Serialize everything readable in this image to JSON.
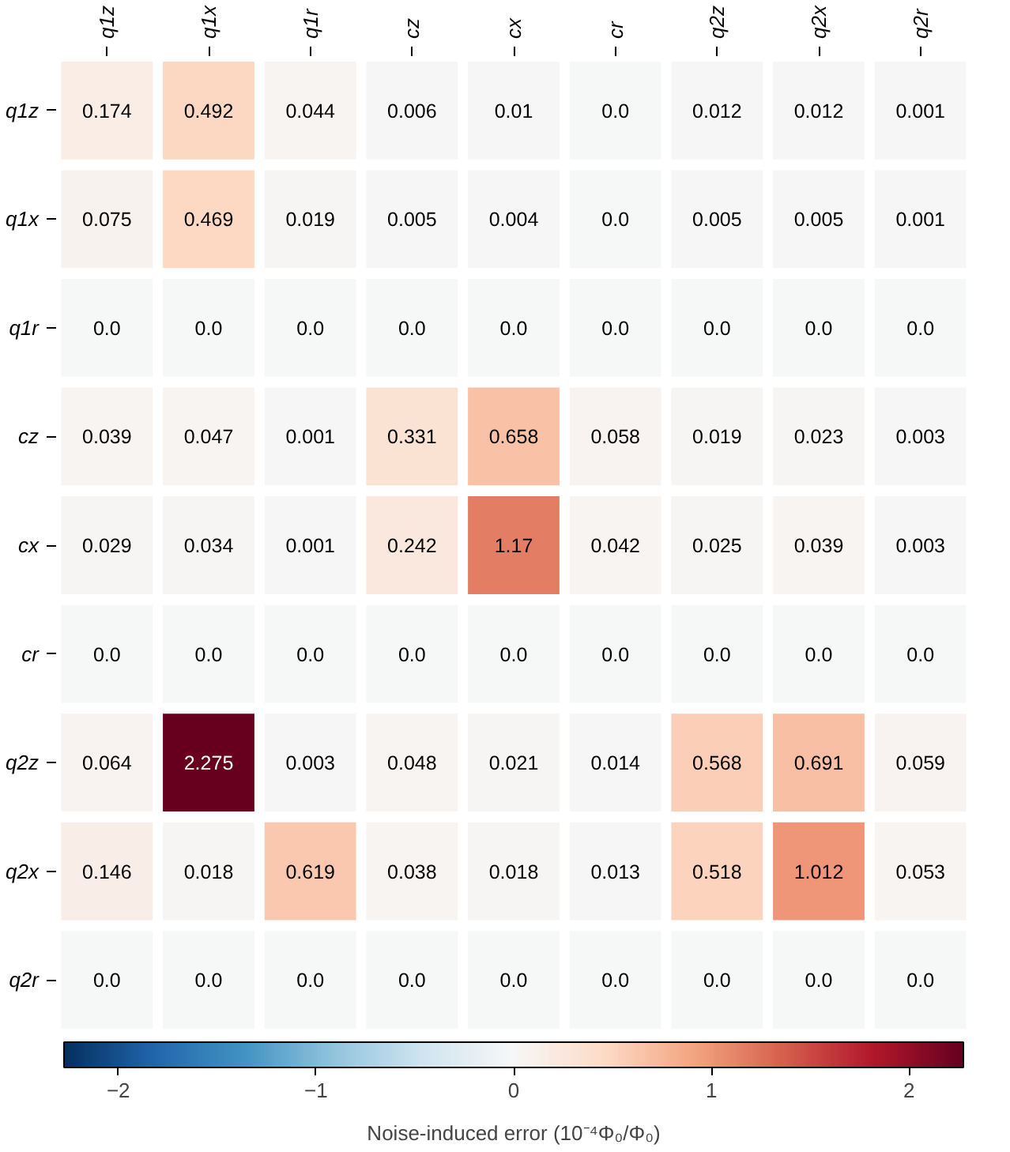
{
  "chart_data": {
    "type": "heatmap",
    "categories": [
      "q1z",
      "q1x",
      "q1r",
      "cz",
      "cx",
      "cr",
      "q2z",
      "q2x",
      "q2r"
    ],
    "y_categories": [
      "q1z",
      "q1x",
      "q1r",
      "cz",
      "cx",
      "cr",
      "q2z",
      "q2x",
      "q2r"
    ],
    "cells": [
      [
        0.174,
        0.492,
        0.044,
        0.006,
        0.01,
        0.0,
        0.012,
        0.012,
        0.001
      ],
      [
        0.075,
        0.469,
        0.019,
        0.005,
        0.004,
        0.0,
        0.005,
        0.005,
        0.001
      ],
      [
        0.0,
        0.0,
        0.0,
        0.0,
        0.0,
        0.0,
        0.0,
        0.0,
        0.0
      ],
      [
        0.039,
        0.047,
        0.001,
        0.331,
        0.658,
        0.058,
        0.019,
        0.023,
        0.003
      ],
      [
        0.029,
        0.034,
        0.001,
        0.242,
        1.17,
        0.042,
        0.025,
        0.039,
        0.003
      ],
      [
        0.0,
        0.0,
        0.0,
        0.0,
        0.0,
        0.0,
        0.0,
        0.0,
        0.0
      ],
      [
        0.064,
        2.275,
        0.003,
        0.048,
        0.021,
        0.014,
        0.568,
        0.691,
        0.059
      ],
      [
        0.146,
        0.018,
        0.619,
        0.038,
        0.018,
        0.013,
        0.518,
        1.012,
        0.053
      ],
      [
        0.0,
        0.0,
        0.0,
        0.0,
        0.0,
        0.0,
        0.0,
        0.0,
        0.0
      ]
    ],
    "cell_labels": [
      [
        "0.174",
        "0.492",
        "0.044",
        "0.006",
        "0.01",
        "0.0",
        "0.012",
        "0.012",
        "0.001"
      ],
      [
        "0.075",
        "0.469",
        "0.019",
        "0.005",
        "0.004",
        "0.0",
        "0.005",
        "0.005",
        "0.001"
      ],
      [
        "0.0",
        "0.0",
        "0.0",
        "0.0",
        "0.0",
        "0.0",
        "0.0",
        "0.0",
        "0.0"
      ],
      [
        "0.039",
        "0.047",
        "0.001",
        "0.331",
        "0.658",
        "0.058",
        "0.019",
        "0.023",
        "0.003"
      ],
      [
        "0.029",
        "0.034",
        "0.001",
        "0.242",
        "1.17",
        "0.042",
        "0.025",
        "0.039",
        "0.003"
      ],
      [
        "0.0",
        "0.0",
        "0.0",
        "0.0",
        "0.0",
        "0.0",
        "0.0",
        "0.0",
        "0.0"
      ],
      [
        "0.064",
        "2.275",
        "0.003",
        "0.048",
        "0.021",
        "0.014",
        "0.568",
        "0.691",
        "0.059"
      ],
      [
        "0.146",
        "0.018",
        "0.619",
        "0.038",
        "0.018",
        "0.013",
        "0.518",
        "1.012",
        "0.053"
      ],
      [
        "0.0",
        "0.0",
        "0.0",
        "0.0",
        "0.0",
        "0.0",
        "0.0",
        "0.0",
        "0.0"
      ]
    ],
    "clim": [
      -2.275,
      2.275
    ],
    "cticks": [
      -2,
      -1,
      0,
      1,
      2
    ],
    "clabel": "Noise-induced error (10⁻⁴Φ₀/Φ₀)"
  }
}
